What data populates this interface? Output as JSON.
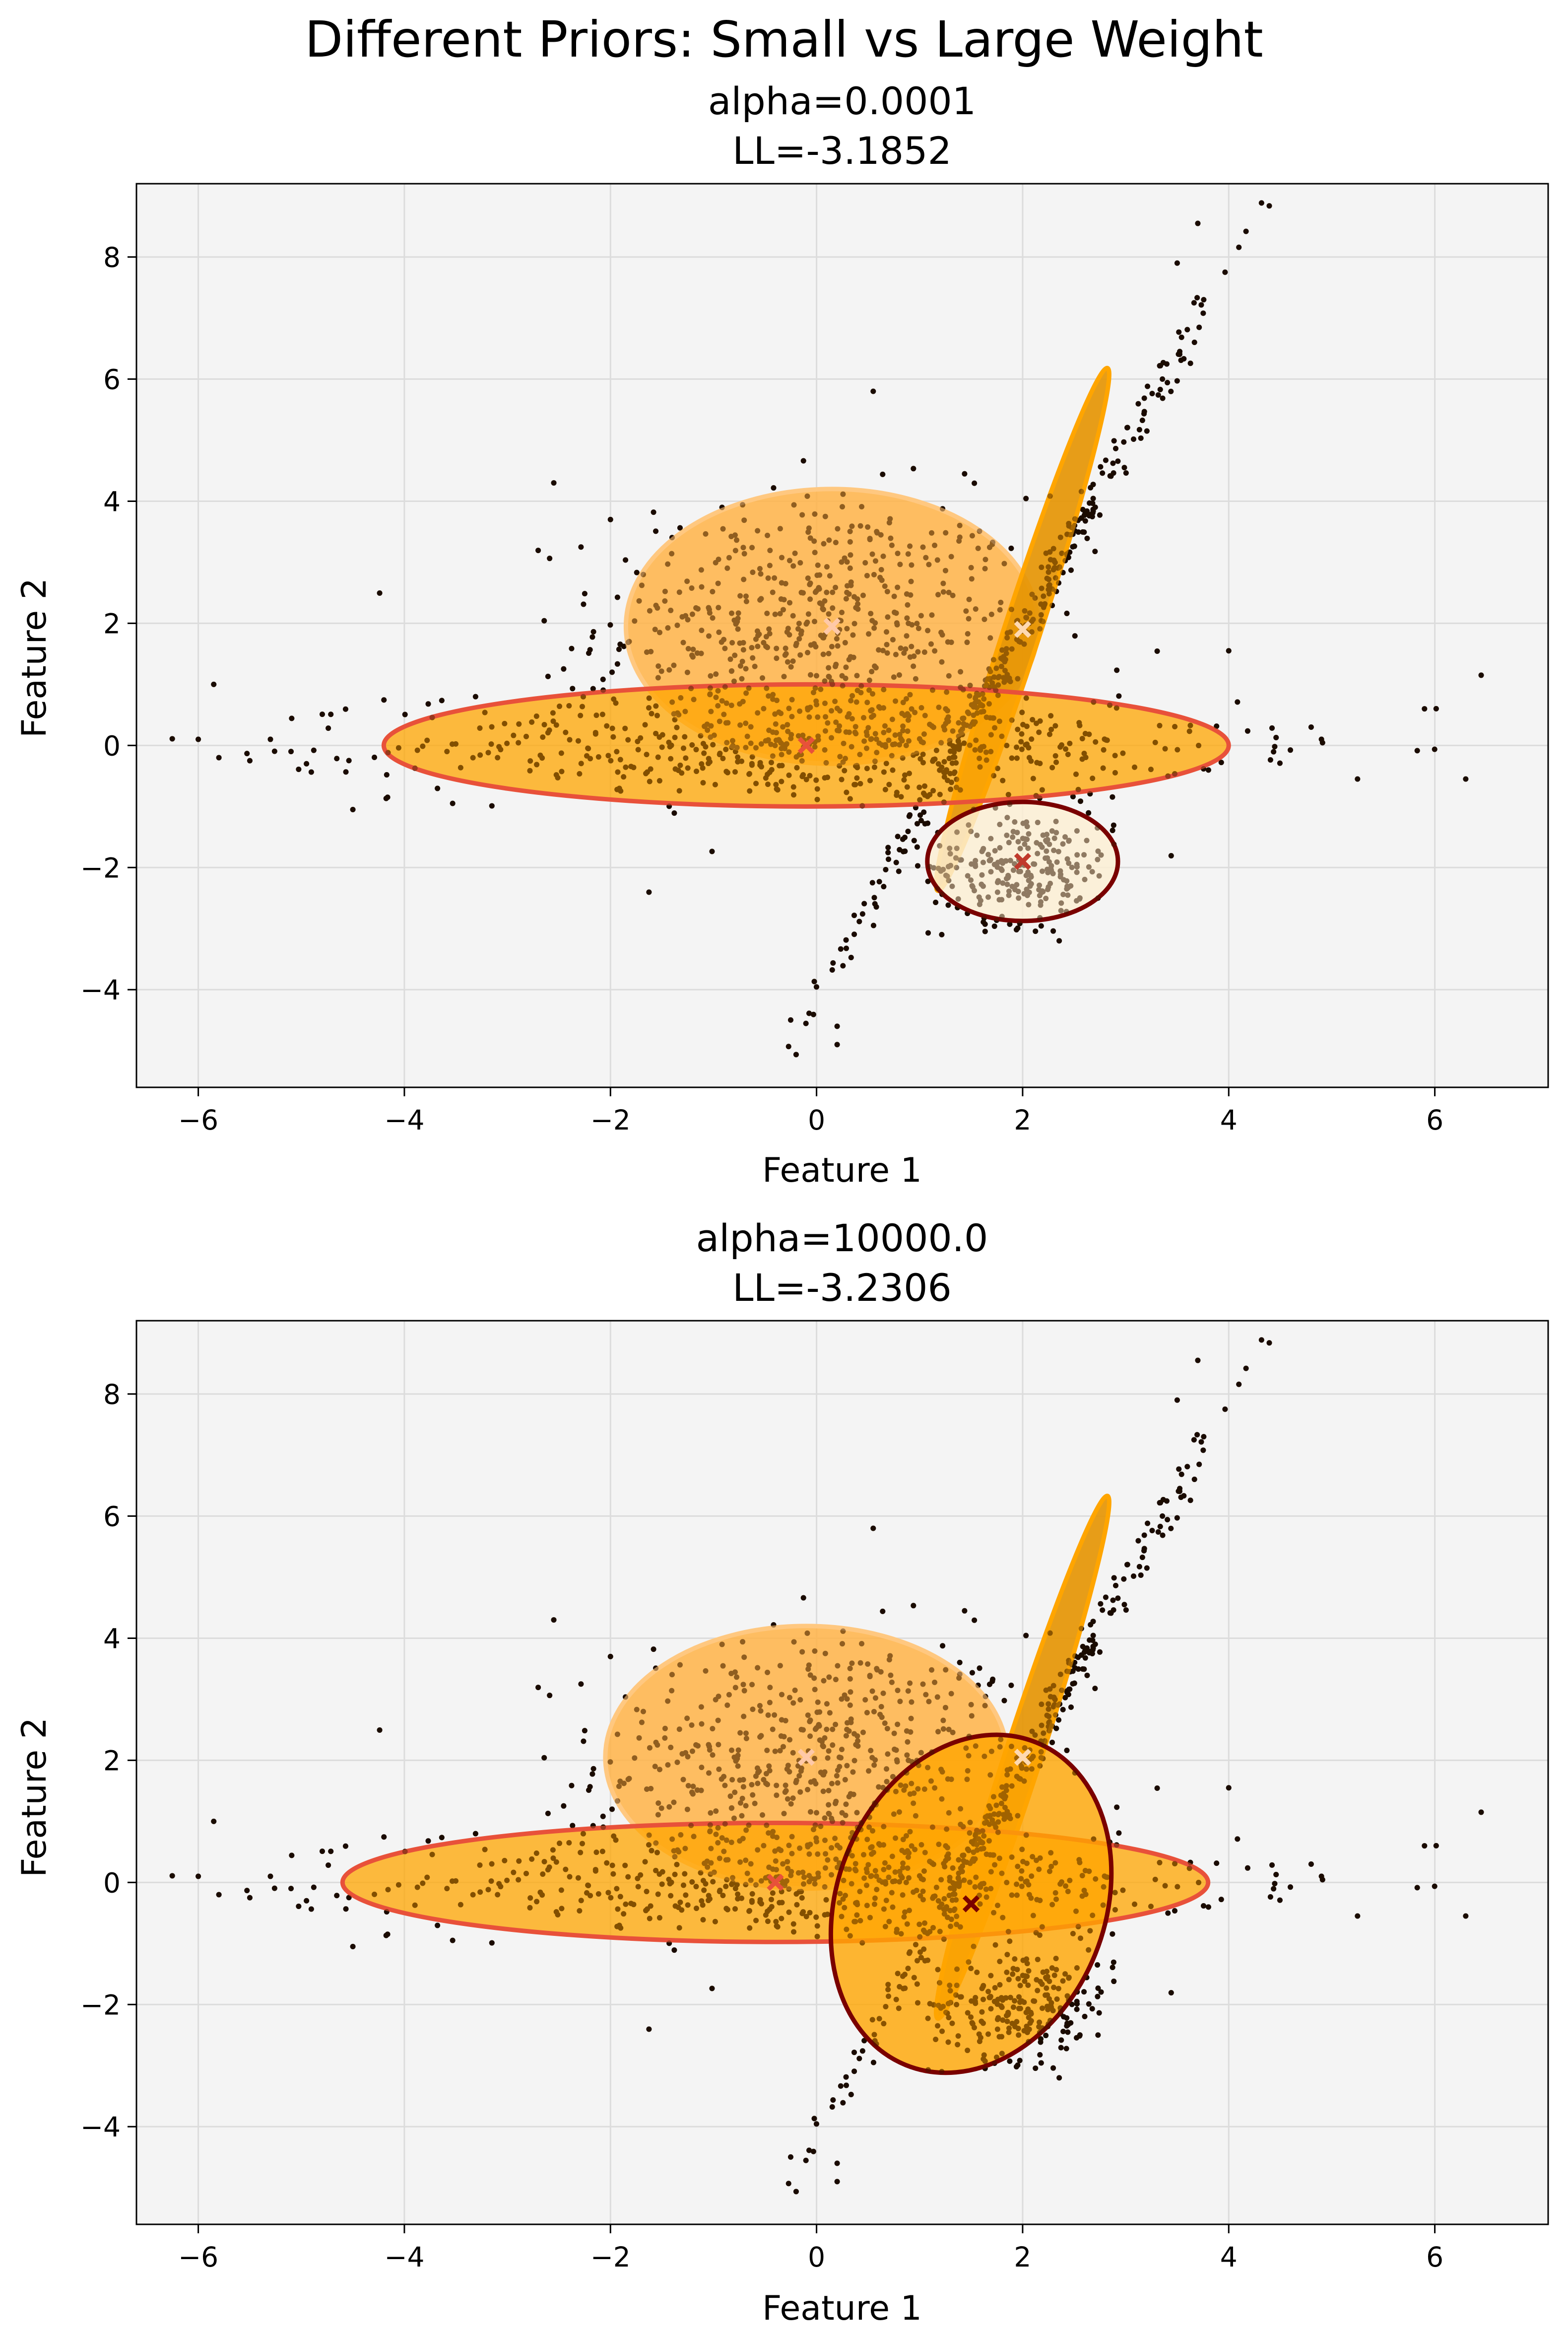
{
  "figure": {
    "suptitle": "Different Priors: Small vs Large Weight"
  },
  "chart_data": [
    {
      "type": "scatter",
      "title_line1": "alpha=0.0001",
      "title_line2": "LL=-3.1852",
      "xlabel": "Feature 1",
      "ylabel": "Feature 2",
      "xlim": [
        -6.6,
        7.1
      ],
      "ylim": [
        -5.6,
        9.2
      ],
      "xticks": [
        -6,
        -4,
        -2,
        0,
        2,
        4,
        6
      ],
      "yticks": [
        -4,
        -2,
        0,
        2,
        4,
        6,
        8
      ],
      "xtick_labels": [
        "−6",
        "−4",
        "−2",
        "0",
        "2",
        "4",
        "6"
      ],
      "ytick_labels": [
        "−4",
        "−2",
        "0",
        "2",
        "4",
        "6",
        "8"
      ],
      "grid": true,
      "background": "#f4f4f4",
      "components": [
        {
          "mean": [
            0.15,
            1.95
          ],
          "width": 4.0,
          "height": 4.5,
          "angle": 0,
          "fill": "#ffb347",
          "edge": "#ffc880",
          "alpha": 0.85,
          "marker": "#ffc9a8"
        },
        {
          "mean": [
            2.0,
            1.9
          ],
          "width": 0.35,
          "height": 9.0,
          "angle": 18,
          "fill": "#e59400",
          "edge": "#ffa500",
          "alpha": 0.9,
          "marker": "#ffd9b0"
        },
        {
          "mean": [
            -0.1,
            0.0
          ],
          "width": 8.2,
          "height": 2.0,
          "angle": 0,
          "fill": "#ffa500",
          "edge": "#e8513a",
          "alpha": 0.75,
          "marker": "#e8513a"
        },
        {
          "mean": [
            2.0,
            -1.9
          ],
          "width": 1.85,
          "height": 1.95,
          "angle": 0,
          "fill": "#fbeed3",
          "edge": "#7a0000",
          "alpha": 0.85,
          "marker": "#c0392b"
        }
      ]
    },
    {
      "type": "scatter",
      "title_line1": "alpha=10000.0",
      "title_line2": "LL=-3.2306",
      "xlabel": "Feature 1",
      "ylabel": "Feature 2",
      "xlim": [
        -6.6,
        7.1
      ],
      "ylim": [
        -5.6,
        9.2
      ],
      "xticks": [
        -6,
        -4,
        -2,
        0,
        2,
        4,
        6
      ],
      "yticks": [
        -4,
        -2,
        0,
        2,
        4,
        6,
        8
      ],
      "xtick_labels": [
        "−6",
        "−4",
        "−2",
        "0",
        "2",
        "4",
        "6"
      ],
      "ytick_labels": [
        "−4",
        "−2",
        "0",
        "2",
        "4",
        "6",
        "8"
      ],
      "grid": true,
      "background": "#f4f4f4",
      "components": [
        {
          "mean": [
            -0.1,
            2.05
          ],
          "width": 3.9,
          "height": 4.3,
          "angle": 0,
          "fill": "#ffb347",
          "edge": "#ffc880",
          "alpha": 0.85,
          "marker": "#ffc9a8"
        },
        {
          "mean": [
            2.0,
            2.05
          ],
          "width": 0.35,
          "height": 9.0,
          "angle": 18,
          "fill": "#e59400",
          "edge": "#ffa500",
          "alpha": 0.9,
          "marker": "#ffd9b0"
        },
        {
          "mean": [
            -0.4,
            0.0
          ],
          "width": 8.4,
          "height": 1.95,
          "angle": 0,
          "fill": "#ffa500",
          "edge": "#e8513a",
          "alpha": 0.75,
          "marker": "#e8513a"
        },
        {
          "mean": [
            1.5,
            -0.35
          ],
          "width": 2.6,
          "height": 5.7,
          "angle": 22,
          "fill": "#ffa500",
          "edge": "#7a0000",
          "alpha": 0.8,
          "marker": "#7a0000"
        }
      ]
    }
  ]
}
